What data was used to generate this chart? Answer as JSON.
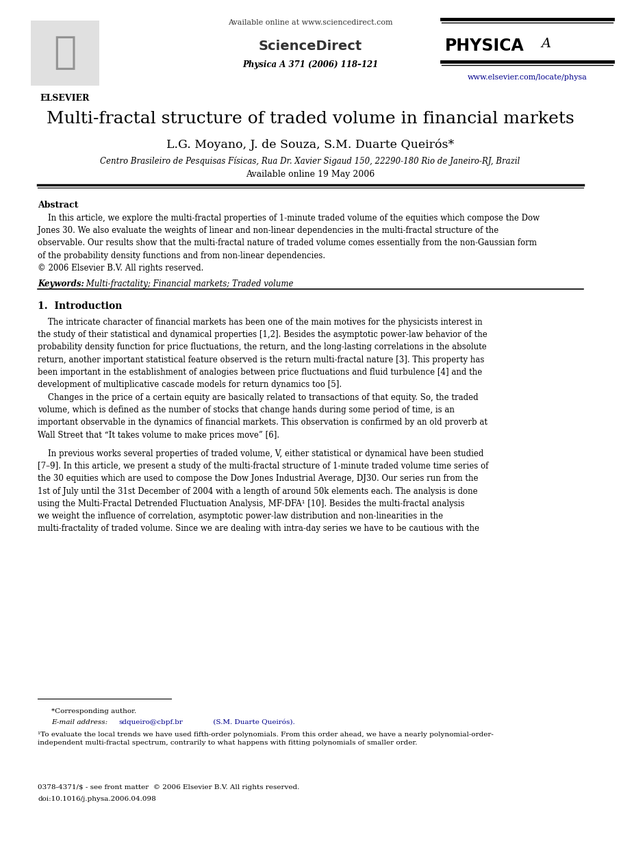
{
  "title": "Multi-fractal structure of traded volume in financial markets",
  "authors": "L.G. Moyano, J. de Souza, S.M. Duarte Queirós*",
  "affiliation": "Centro Brasileiro de Pesquisas Físicas, Rua Dr. Xavier Sigaud 150, 22290-180 Rio de Janeiro-RJ, Brazil",
  "available_online": "Available online 19 May 2006",
  "journal_info": "Physica A 371 (2006) 118–121",
  "journal_url": "www.elsevier.com/locate/physa",
  "sciencedirect_text": "Available online at www.sciencedirect.com",
  "abstract_label": "Abstract",
  "keywords_label": "Keywords:",
  "keywords_text": " Multi-fractality; Financial markets; Traded volume",
  "section1_label": "1.  Introduction",
  "footnote_star": "*Corresponding author.",
  "footnote_email_prefix": "E-mail address: ",
  "footnote_email_link": "sdqueiro@cbpf.br",
  "footnote_email_suffix": " (S.M. Duarte Queirós).",
  "footer_issn": "0378-4371/$ - see front matter  © 2006 Elsevier B.V. All rights reserved.",
  "footer_doi": "doi:10.1016/j.physa.2006.04.098",
  "bg_color": "#ffffff",
  "text_color": "#000000",
  "link_color": "#00008b"
}
